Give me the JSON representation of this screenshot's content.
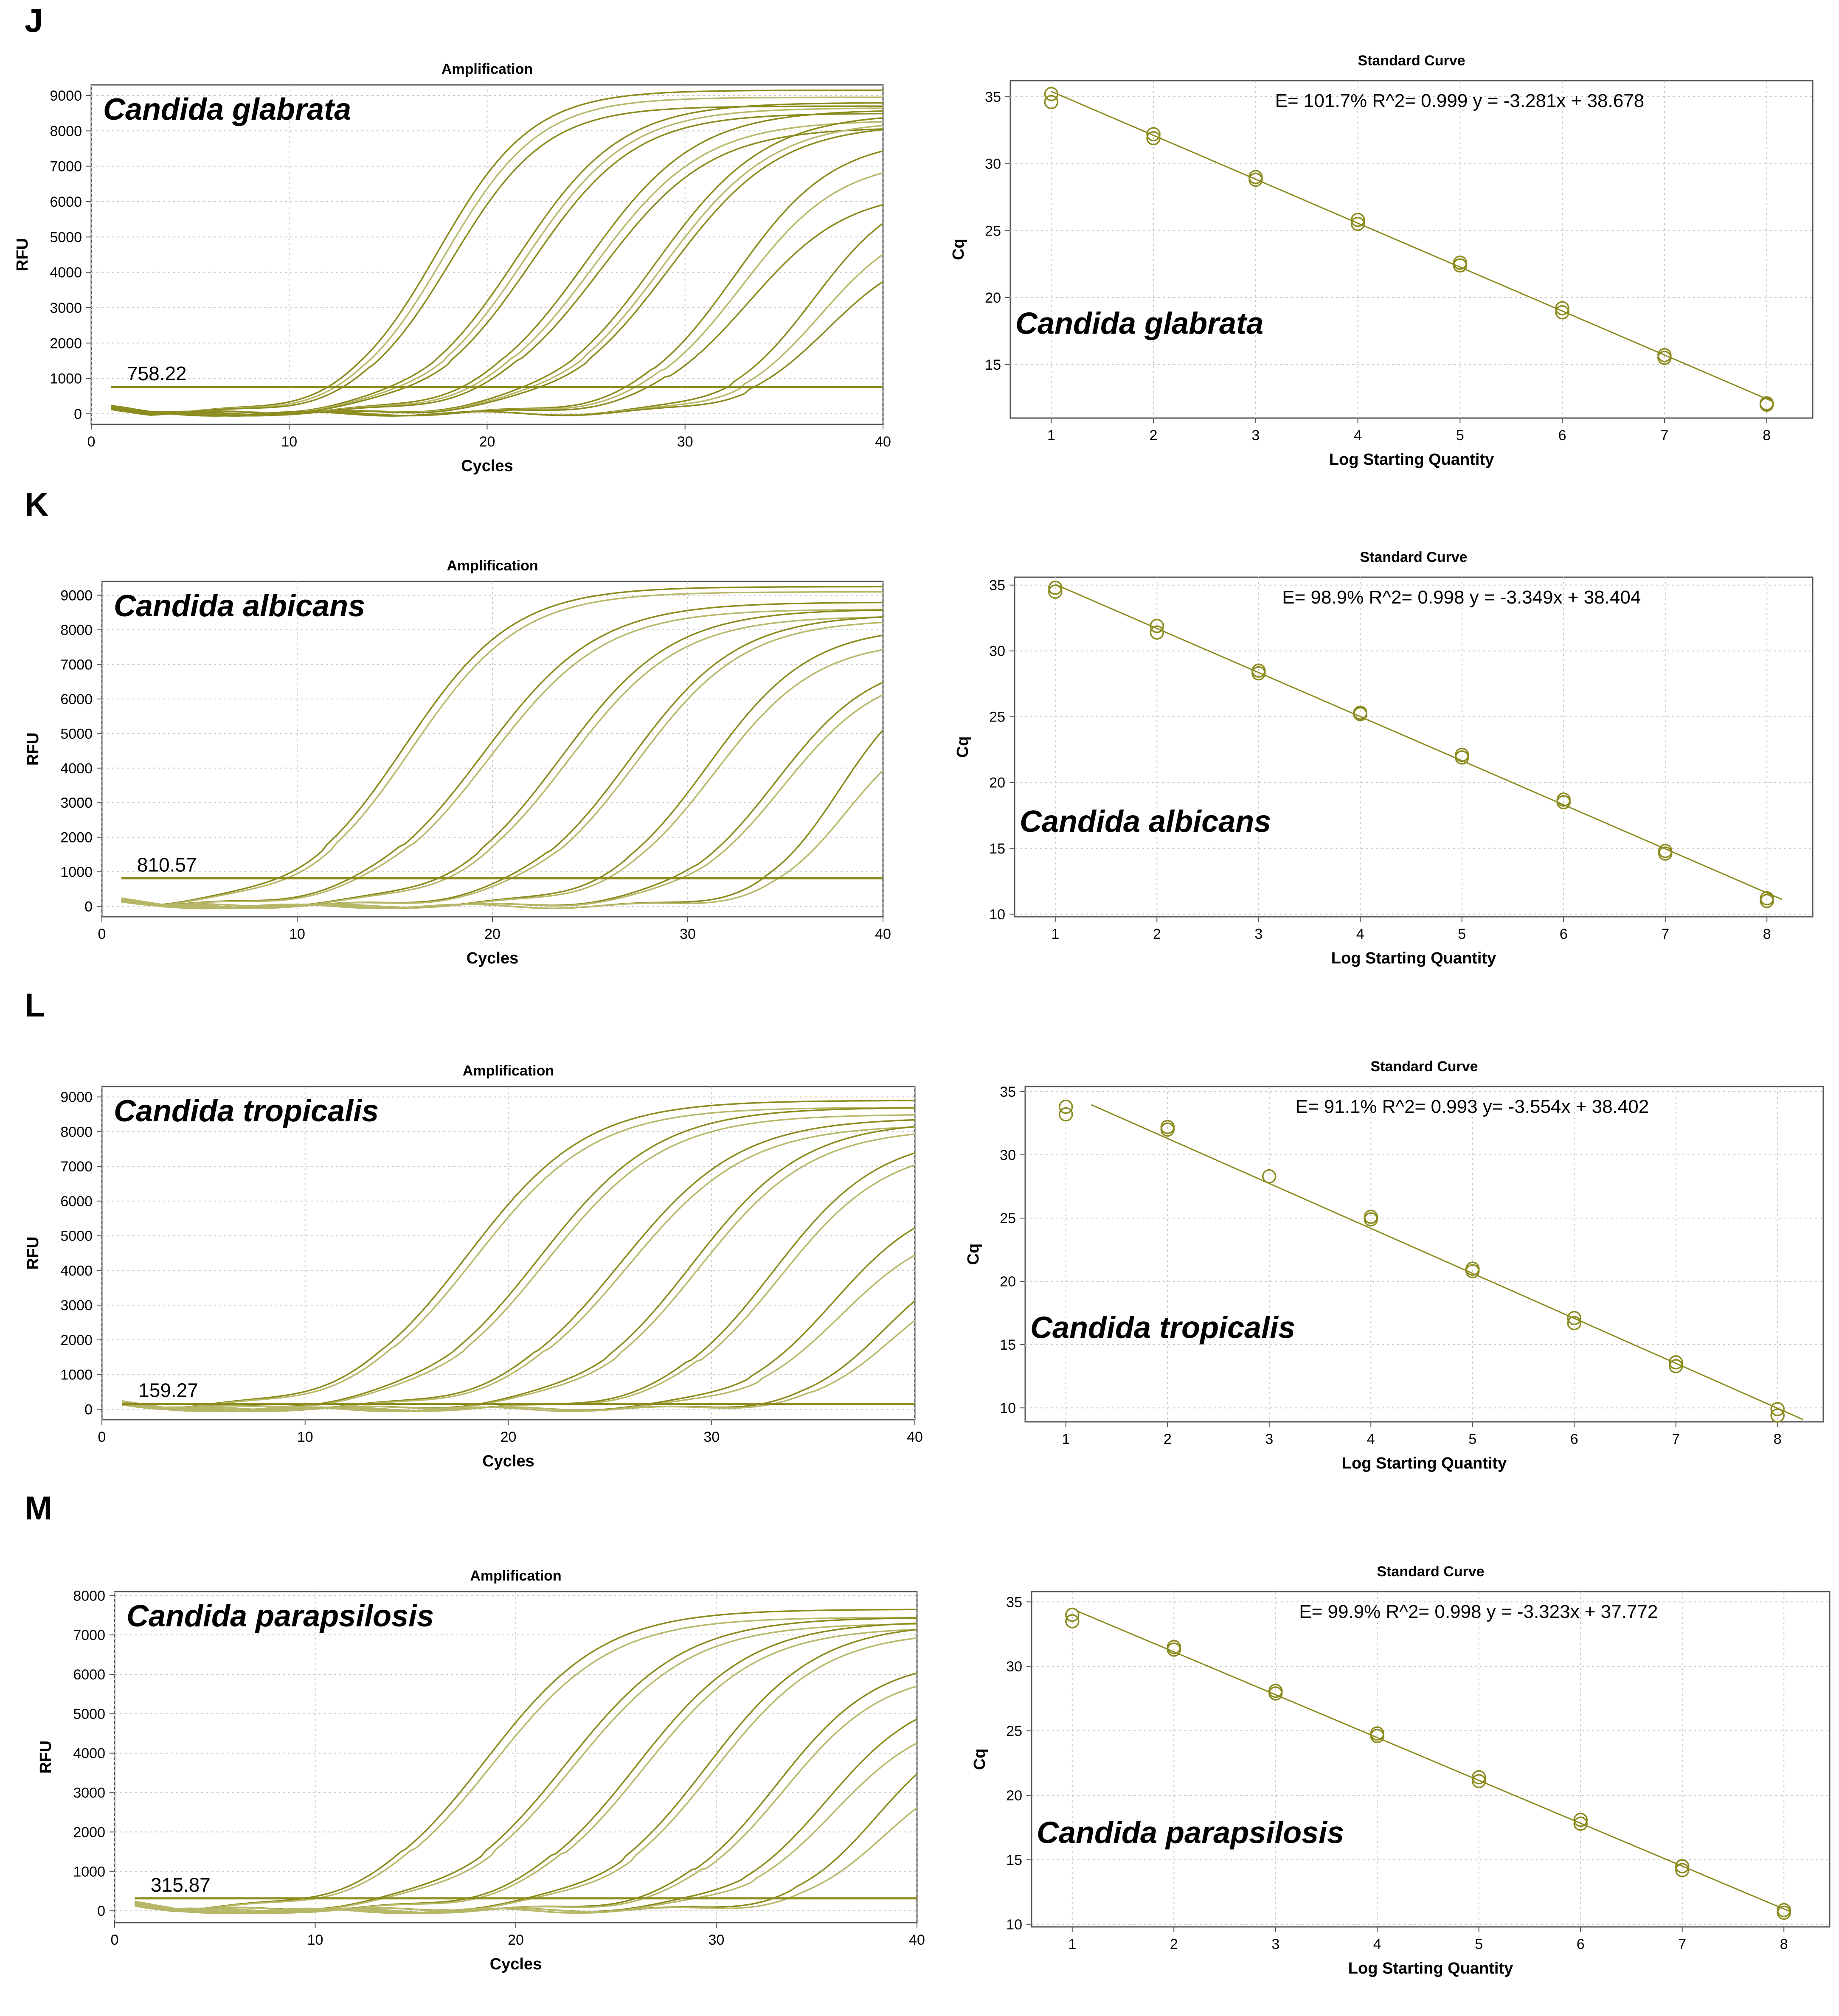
{
  "colors": {
    "curve": "#8b8b1e",
    "curve_light": "#b8b86a",
    "grid": "#c8c8c8",
    "axis": "#555555"
  },
  "panels": [
    {
      "letter": "J",
      "species": "Candida glabrata",
      "amplification": {
        "type": "line",
        "title": "Amplification",
        "xlabel": "Cycles",
        "ylabel": "RFU",
        "xlim": [
          0,
          40
        ],
        "ylim": [
          -300,
          9300
        ],
        "x_ticks": [
          0,
          10,
          20,
          30,
          40
        ],
        "y_ticks": [
          0,
          1000,
          2000,
          3000,
          4000,
          5000,
          6000,
          7000,
          8000,
          9000
        ],
        "threshold": 758.22,
        "threshold_label": "758.22",
        "curves": [
          {
            "mid": 17.5,
            "k": 0.42,
            "plateau": [
              9150,
              8950,
              8700
            ]
          },
          {
            "mid": 21.5,
            "k": 0.38,
            "plateau": [
              8800,
              8650,
              8500
            ]
          },
          {
            "mid": 25.0,
            "k": 0.36,
            "plateau": [
              8600,
              8300,
              8100
            ]
          },
          {
            "mid": 28.5,
            "k": 0.36,
            "plateau": [
              8500,
              8300,
              8200
            ]
          },
          {
            "mid": 32.5,
            "k": 0.4,
            "plateau": [
              7800,
              7200,
              6300
            ]
          },
          {
            "mid": 36.5,
            "k": 0.45,
            "plateau": [
              6500,
              5600,
              4800
            ]
          }
        ]
      },
      "standard_curve": {
        "type": "scatter",
        "title": "Standard Curve",
        "xlabel": "Log Starting Quantity",
        "ylabel": "Cq",
        "xlim": [
          0.6,
          8.45
        ],
        "ylim": [
          11,
          36.2
        ],
        "x_ticks": [
          1,
          2,
          3,
          4,
          5,
          6,
          7,
          8
        ],
        "y_ticks": [
          15,
          20,
          25,
          30,
          35
        ],
        "equation": "E= 101.7% R^2= 0.999  y = -3.281x + 38.678",
        "slope": -3.281,
        "intercept": 38.678,
        "fit_x": [
          1,
          8.05
        ],
        "points": [
          {
            "x": 1,
            "y": 35.2
          },
          {
            "x": 1,
            "y": 34.6
          },
          {
            "x": 2,
            "y": 32.2
          },
          {
            "x": 2,
            "y": 31.9
          },
          {
            "x": 3,
            "y": 29.0
          },
          {
            "x": 3,
            "y": 28.8
          },
          {
            "x": 4,
            "y": 25.8
          },
          {
            "x": 4,
            "y": 25.5
          },
          {
            "x": 5,
            "y": 22.6
          },
          {
            "x": 5,
            "y": 22.4
          },
          {
            "x": 6,
            "y": 19.2
          },
          {
            "x": 6,
            "y": 18.9
          },
          {
            "x": 7,
            "y": 15.7
          },
          {
            "x": 7,
            "y": 15.5
          },
          {
            "x": 8,
            "y": 12.1
          },
          {
            "x": 8,
            "y": 12.0
          }
        ]
      }
    },
    {
      "letter": "K",
      "species": "Candida albicans",
      "amplification": {
        "type": "line",
        "title": "Amplification",
        "xlabel": "Cycles",
        "ylabel": "RFU",
        "xlim": [
          0,
          40
        ],
        "ylim": [
          -300,
          9400
        ],
        "x_ticks": [
          0,
          10,
          20,
          30,
          40
        ],
        "y_ticks": [
          0,
          1000,
          2000,
          3000,
          4000,
          5000,
          6000,
          7000,
          8000,
          9000
        ],
        "threshold": 810.57,
        "threshold_label": "810.57",
        "curves": [
          {
            "mid": 15.5,
            "k": 0.36,
            "plateau": [
              9250,
              9100
            ]
          },
          {
            "mid": 19.5,
            "k": 0.34,
            "plateau": [
              8800,
              8600
            ]
          },
          {
            "mid": 23.5,
            "k": 0.35,
            "plateau": [
              8600,
              8400
            ]
          },
          {
            "mid": 27.0,
            "k": 0.36,
            "plateau": [
              8450,
              8300
            ]
          },
          {
            "mid": 31.0,
            "k": 0.38,
            "plateau": [
              8100,
              7700
            ]
          },
          {
            "mid": 34.5,
            "k": 0.4,
            "plateau": [
              7200,
              6900
            ]
          },
          {
            "mid": 37.8,
            "k": 0.5,
            "plateau": [
              6800,
              5500
            ]
          }
        ]
      },
      "standard_curve": {
        "type": "scatter",
        "title": "Standard Curve",
        "xlabel": "Log Starting Quantity",
        "ylabel": "Cq",
        "xlim": [
          0.6,
          8.45
        ],
        "ylim": [
          9.8,
          35.6
        ],
        "x_ticks": [
          1,
          2,
          3,
          4,
          5,
          6,
          7,
          8
        ],
        "y_ticks": [
          10,
          15,
          20,
          25,
          30,
          35
        ],
        "equation": "E= 98.9% R^2= 0.998  y = -3.349x + 38.404",
        "slope": -3.349,
        "intercept": 38.404,
        "fit_x": [
          1,
          8.15
        ],
        "points": [
          {
            "x": 1,
            "y": 34.8
          },
          {
            "x": 1,
            "y": 34.5
          },
          {
            "x": 2,
            "y": 31.9
          },
          {
            "x": 2,
            "y": 31.4
          },
          {
            "x": 3,
            "y": 28.5
          },
          {
            "x": 3,
            "y": 28.3
          },
          {
            "x": 4,
            "y": 25.3
          },
          {
            "x": 4,
            "y": 25.2
          },
          {
            "x": 5,
            "y": 22.1
          },
          {
            "x": 5,
            "y": 21.9
          },
          {
            "x": 6,
            "y": 18.7
          },
          {
            "x": 6,
            "y": 18.5
          },
          {
            "x": 7,
            "y": 14.8
          },
          {
            "x": 7,
            "y": 14.6
          },
          {
            "x": 8,
            "y": 11.2
          },
          {
            "x": 8,
            "y": 11.0
          }
        ]
      }
    },
    {
      "letter": "L",
      "species": "Candida tropicalis",
      "amplification": {
        "type": "line",
        "title": "Amplification",
        "xlabel": "Cycles",
        "ylabel": "RFU",
        "xlim": [
          0,
          40
        ],
        "ylim": [
          -300,
          9300
        ],
        "x_ticks": [
          0,
          10,
          20,
          30,
          40
        ],
        "y_ticks": [
          0,
          1000,
          2000,
          3000,
          4000,
          5000,
          6000,
          7000,
          8000,
          9000
        ],
        "threshold": 159.27,
        "threshold_label": "159.27",
        "curves": [
          {
            "mid": 18.0,
            "k": 0.34,
            "plateau": [
              8900,
              8700
            ]
          },
          {
            "mid": 21.5,
            "k": 0.34,
            "plateau": [
              8700,
              8500
            ]
          },
          {
            "mid": 25.5,
            "k": 0.34,
            "plateau": [
              8400,
              8200
            ]
          },
          {
            "mid": 29.0,
            "k": 0.36,
            "plateau": [
              8300,
              8100
            ]
          },
          {
            "mid": 33.0,
            "k": 0.38,
            "plateau": [
              7900,
              7600
            ]
          },
          {
            "mid": 36.0,
            "k": 0.42,
            "plateau": [
              6200,
              5400
            ]
          },
          {
            "mid": 38.5,
            "k": 0.5,
            "plateau": [
              4600,
              4000
            ]
          }
        ]
      },
      "standard_curve": {
        "type": "scatter",
        "title": "Standard Curve",
        "xlabel": "Log Starting Quantity",
        "ylabel": "Cq",
        "xlim": [
          0.6,
          8.45
        ],
        "ylim": [
          8.9,
          35.4
        ],
        "x_ticks": [
          1,
          2,
          3,
          4,
          5,
          6,
          7,
          8
        ],
        "y_ticks": [
          10,
          15,
          20,
          25,
          30,
          35
        ],
        "equation": "E= 91.1% R^2= 0.993  y= -3.554x + 38.402",
        "slope": -3.554,
        "intercept": 38.402,
        "fit_x": [
          1.25,
          8.25
        ],
        "points": [
          {
            "x": 1,
            "y": 33.8
          },
          {
            "x": 1,
            "y": 33.2
          },
          {
            "x": 2,
            "y": 32.2
          },
          {
            "x": 2,
            "y": 32.0
          },
          {
            "x": 3,
            "y": 28.3
          },
          {
            "x": 4,
            "y": 25.1
          },
          {
            "x": 4,
            "y": 24.9
          },
          {
            "x": 5,
            "y": 21.0
          },
          {
            "x": 5,
            "y": 20.8
          },
          {
            "x": 6,
            "y": 17.1
          },
          {
            "x": 6,
            "y": 16.7
          },
          {
            "x": 7,
            "y": 13.6
          },
          {
            "x": 7,
            "y": 13.3
          },
          {
            "x": 8,
            "y": 9.9
          },
          {
            "x": 8,
            "y": 9.4
          }
        ]
      }
    },
    {
      "letter": "M",
      "species": "Candida parapsilosis",
      "amplification": {
        "type": "line",
        "title": "Amplification",
        "xlabel": "Cycles",
        "ylabel": "RFU",
        "xlim": [
          0,
          40
        ],
        "ylim": [
          -300,
          8100
        ],
        "x_ticks": [
          0,
          10,
          20,
          30,
          40
        ],
        "y_ticks": [
          0,
          1000,
          2000,
          3000,
          4000,
          5000,
          6000,
          7000,
          8000
        ],
        "threshold": 315.87,
        "threshold_label": "315.87",
        "curves": [
          {
            "mid": 18.5,
            "k": 0.34,
            "plateau": [
              7650,
              7450
            ]
          },
          {
            "mid": 22.5,
            "k": 0.34,
            "plateau": [
              7450,
              7300
            ]
          },
          {
            "mid": 26.0,
            "k": 0.35,
            "plateau": [
              7350,
              7200
            ]
          },
          {
            "mid": 29.5,
            "k": 0.36,
            "plateau": [
              7300,
              7100
            ]
          },
          {
            "mid": 33.0,
            "k": 0.4,
            "plateau": [
              6400,
              6100
            ]
          },
          {
            "mid": 35.5,
            "k": 0.42,
            "plateau": [
              5600,
              5000
            ]
          },
          {
            "mid": 38.0,
            "k": 0.48,
            "plateau": [
              4800,
              3800
            ]
          }
        ]
      },
      "standard_curve": {
        "type": "scatter",
        "title": "Standard Curve",
        "xlabel": "Log Starting Quantity",
        "ylabel": "Cq",
        "xlim": [
          0.6,
          8.45
        ],
        "ylim": [
          9.8,
          35.8
        ],
        "x_ticks": [
          1,
          2,
          3,
          4,
          5,
          6,
          7,
          8
        ],
        "y_ticks": [
          10,
          15,
          20,
          25,
          30,
          35
        ],
        "equation": "E= 99.9% R^2= 0.998  y = -3.323x + 37.772",
        "slope": -3.323,
        "intercept": 37.772,
        "fit_x": [
          1.05,
          8.05
        ],
        "points": [
          {
            "x": 1,
            "y": 34.0
          },
          {
            "x": 1,
            "y": 33.5
          },
          {
            "x": 2,
            "y": 31.5
          },
          {
            "x": 2,
            "y": 31.3
          },
          {
            "x": 3,
            "y": 28.1
          },
          {
            "x": 3,
            "y": 27.9
          },
          {
            "x": 4,
            "y": 24.8
          },
          {
            "x": 4,
            "y": 24.6
          },
          {
            "x": 5,
            "y": 21.4
          },
          {
            "x": 5,
            "y": 21.1
          },
          {
            "x": 6,
            "y": 18.1
          },
          {
            "x": 6,
            "y": 17.8
          },
          {
            "x": 7,
            "y": 14.5
          },
          {
            "x": 7,
            "y": 14.2
          },
          {
            "x": 8,
            "y": 11.1
          },
          {
            "x": 8,
            "y": 10.9
          }
        ]
      }
    }
  ]
}
